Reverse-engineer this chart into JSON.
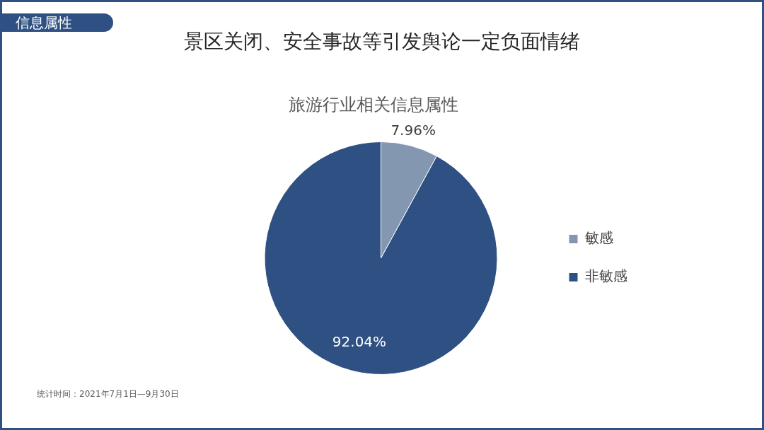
{
  "chart_data": {
    "type": "pie",
    "title": "景区关闭、安全事故等引发舆论一定负面情绪",
    "subtitle": "旅游行业相关信息属性",
    "categories": [
      "敏感",
      "非敏感"
    ],
    "values": [
      7.96,
      92.04
    ],
    "colors": [
      "#8497b0",
      "#2e5082"
    ],
    "value_labels": [
      "7.96%",
      "92.04%"
    ],
    "legend": "right",
    "annotations": [
      "信息属性",
      "统计时间：2021年7月1日—9月30日"
    ]
  }
}
